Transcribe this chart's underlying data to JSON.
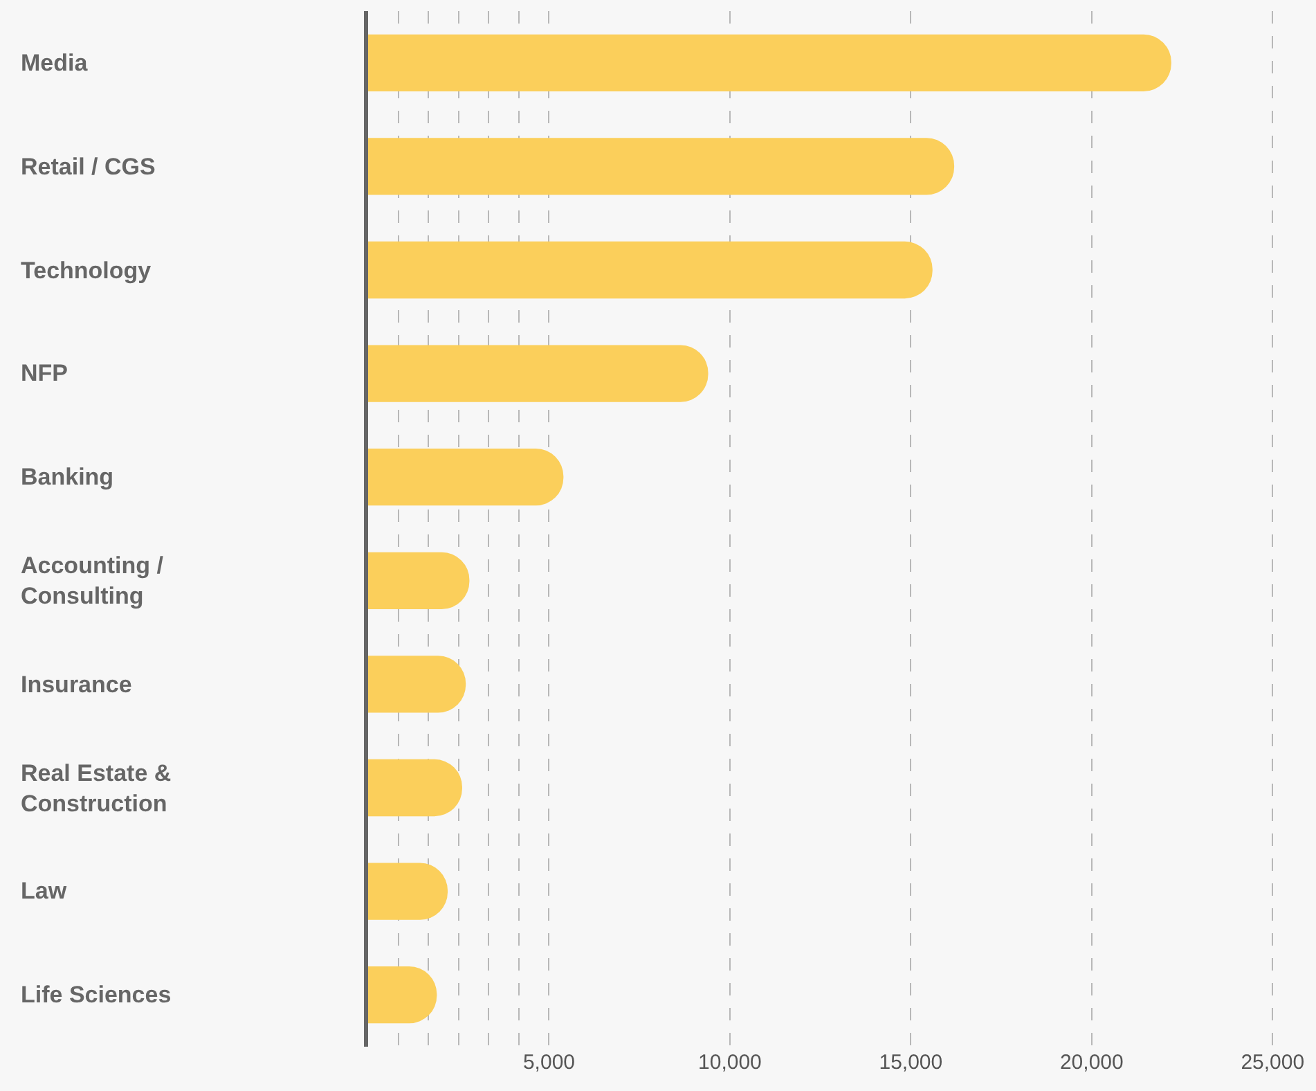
{
  "chart_data": {
    "type": "bar",
    "orientation": "horizontal",
    "categories": [
      "Media",
      "Retail / CGS",
      "Technology",
      "NFP",
      "Banking",
      "Accounting / Consulting",
      "Insurance",
      "Real Estate & Construction",
      "Law",
      "Life Sciences"
    ],
    "values": [
      22200,
      16200,
      15600,
      9400,
      5400,
      2800,
      2700,
      2600,
      2200,
      1900
    ],
    "color": "#fbcf5b",
    "xlim": [
      0,
      26200
    ],
    "xticks": [
      {
        "value": 833,
        "label": null
      },
      {
        "value": 1667,
        "label": null
      },
      {
        "value": 2500,
        "label": null
      },
      {
        "value": 3333,
        "label": null
      },
      {
        "value": 4167,
        "label": null
      },
      {
        "value": 5000,
        "label": "5,000"
      },
      {
        "value": 10000,
        "label": "10,000"
      },
      {
        "value": 15000,
        "label": "15,000"
      },
      {
        "value": 20000,
        "label": "20,000"
      },
      {
        "value": 25000,
        "label": "25,000"
      }
    ],
    "grid": "x"
  }
}
